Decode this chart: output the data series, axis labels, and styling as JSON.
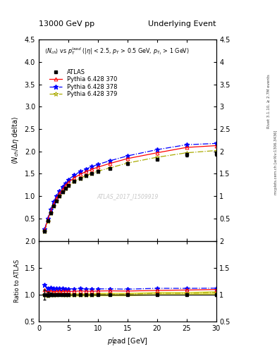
{
  "title_left": "13000 GeV pp",
  "title_right": "Underlying Event",
  "xlabel": "p$_T^l$ead [GeV]",
  "ylabel_main": "⟨N$_{ch}$/ Δη delta⟩",
  "ylabel_ratio": "Ratio to ATLAS",
  "right_label_top": "Rivet 3.1.10, ≥ 2.7M events",
  "right_label_bottom": "mcplots.cern.ch [arXiv:1306.3436]",
  "watermark": "ATLAS_2017_I1509919",
  "xlim": [
    0,
    30
  ],
  "ylim_main": [
    0,
    4.5
  ],
  "ylim_ratio": [
    0.5,
    2.0
  ],
  "yticks_main": [
    0.5,
    1.0,
    1.5,
    2.0,
    2.5,
    3.0,
    3.5,
    4.0,
    4.5
  ],
  "yticks_ratio": [
    0.5,
    1.0,
    1.5,
    2.0
  ],
  "data_atlas_x": [
    1.0,
    1.5,
    2.0,
    2.5,
    3.0,
    3.5,
    4.0,
    4.5,
    5.0,
    6.0,
    7.0,
    8.0,
    9.0,
    10.0,
    12.0,
    15.0,
    20.0,
    25.0,
    30.0
  ],
  "data_atlas_y": [
    0.22,
    0.45,
    0.62,
    0.78,
    0.9,
    1.0,
    1.09,
    1.17,
    1.24,
    1.33,
    1.4,
    1.46,
    1.51,
    1.55,
    1.62,
    1.73,
    1.83,
    1.93,
    1.95
  ],
  "data_atlas_yerr": [
    0.02,
    0.02,
    0.02,
    0.02,
    0.02,
    0.02,
    0.02,
    0.02,
    0.02,
    0.02,
    0.02,
    0.02,
    0.02,
    0.02,
    0.02,
    0.03,
    0.03,
    0.04,
    0.05
  ],
  "data_py370_x": [
    1.0,
    1.5,
    2.0,
    2.5,
    3.0,
    3.5,
    4.0,
    4.5,
    5.0,
    6.0,
    7.0,
    8.0,
    9.0,
    10.0,
    12.0,
    15.0,
    20.0,
    25.0,
    30.0
  ],
  "data_py370_y": [
    0.24,
    0.47,
    0.66,
    0.82,
    0.95,
    1.06,
    1.15,
    1.24,
    1.31,
    1.41,
    1.49,
    1.55,
    1.6,
    1.65,
    1.73,
    1.84,
    1.97,
    2.09,
    2.13
  ],
  "data_py378_x": [
    1.0,
    1.5,
    2.0,
    2.5,
    3.0,
    3.5,
    4.0,
    4.5,
    5.0,
    6.0,
    7.0,
    8.0,
    9.0,
    10.0,
    12.0,
    15.0,
    20.0,
    25.0,
    30.0
  ],
  "data_py378_y": [
    0.26,
    0.5,
    0.7,
    0.87,
    1.0,
    1.12,
    1.21,
    1.29,
    1.37,
    1.47,
    1.55,
    1.61,
    1.66,
    1.71,
    1.79,
    1.9,
    2.04,
    2.15,
    2.18
  ],
  "data_py379_x": [
    1.0,
    1.5,
    2.0,
    2.5,
    3.0,
    3.5,
    4.0,
    4.5,
    5.0,
    6.0,
    7.0,
    8.0,
    9.0,
    10.0,
    12.0,
    15.0,
    20.0,
    25.0,
    30.0
  ],
  "data_py379_y": [
    0.22,
    0.44,
    0.62,
    0.78,
    0.9,
    1.01,
    1.09,
    1.17,
    1.24,
    1.33,
    1.4,
    1.46,
    1.51,
    1.56,
    1.63,
    1.74,
    1.87,
    1.97,
    2.02
  ],
  "color_atlas": "#000000",
  "color_py370": "#ff0000",
  "color_py378": "#0000ff",
  "color_py379": "#aaaa00",
  "legend_atlas": "ATLAS",
  "legend_py370": "Pythia 6.428 370",
  "legend_py378": "Pythia 6.428 378",
  "legend_py379": "Pythia 6.428 379",
  "ratio_py379_band_color": "#cccc00",
  "bg_color": "#ffffff"
}
